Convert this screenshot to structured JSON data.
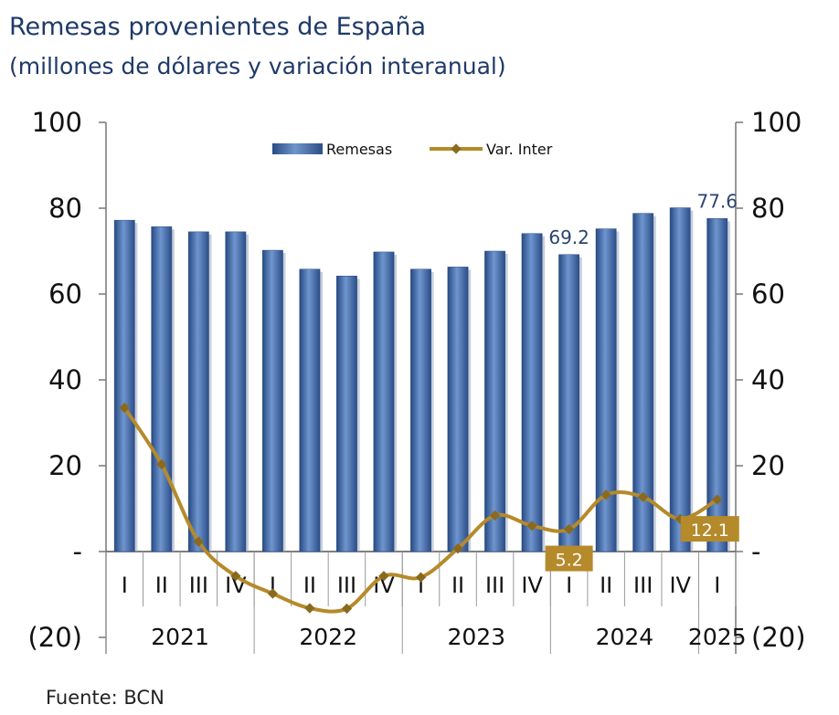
{
  "title": "Remesas provenientes de España",
  "subtitle": "(millones de dólares y variación interanual)",
  "source": "Fuente: BCN",
  "chart_data": {
    "type": "bar",
    "categories": [
      "I",
      "II",
      "III",
      "IV",
      "I",
      "II",
      "III",
      "IV",
      "I",
      "II",
      "III",
      "IV",
      "I",
      "II",
      "III",
      "IV",
      "I"
    ],
    "years": [
      {
        "label": "2021",
        "start": 0,
        "end": 3
      },
      {
        "label": "2022",
        "start": 4,
        "end": 7
      },
      {
        "label": "2023",
        "start": 8,
        "end": 11
      },
      {
        "label": "2024",
        "start": 12,
        "end": 15
      },
      {
        "label": "2025",
        "start": 16,
        "end": 16
      }
    ],
    "series": [
      {
        "name": "Remesas",
        "type": "bar",
        "color": "#4a72b0",
        "values": [
          77.2,
          75.7,
          74.5,
          74.5,
          70.2,
          65.8,
          64.2,
          69.8,
          65.8,
          66.3,
          70.0,
          74.1,
          69.2,
          75.2,
          78.8,
          80.1,
          77.6
        ]
      },
      {
        "name": "Var. Inter",
        "type": "line",
        "color": "#b58a2a",
        "values": [
          33.5,
          20.3,
          2.3,
          -5.7,
          -9.8,
          -13.2,
          -13.3,
          -5.7,
          -6.0,
          0.7,
          8.4,
          6.0,
          5.2,
          13.2,
          12.7,
          7.6,
          12.1
        ]
      }
    ],
    "data_labels": [
      {
        "series": "Remesas",
        "index": 12,
        "text": "69.2"
      },
      {
        "series": "Remesas",
        "index": 16,
        "text": "77.6"
      },
      {
        "series": "Var. Inter",
        "index": 12,
        "text": "5.2"
      },
      {
        "series": "Var. Inter",
        "index": 16,
        "text": "12.1"
      }
    ],
    "y_ticks": [
      "100",
      "80",
      "60",
      "40",
      "20",
      "-",
      "(20)"
    ],
    "y_tick_values": [
      100,
      80,
      60,
      40,
      20,
      0,
      -20
    ],
    "ylim": [
      -20,
      100
    ],
    "y2lim": [
      -20,
      100
    ],
    "legend_position": "top-center",
    "grid": false
  }
}
